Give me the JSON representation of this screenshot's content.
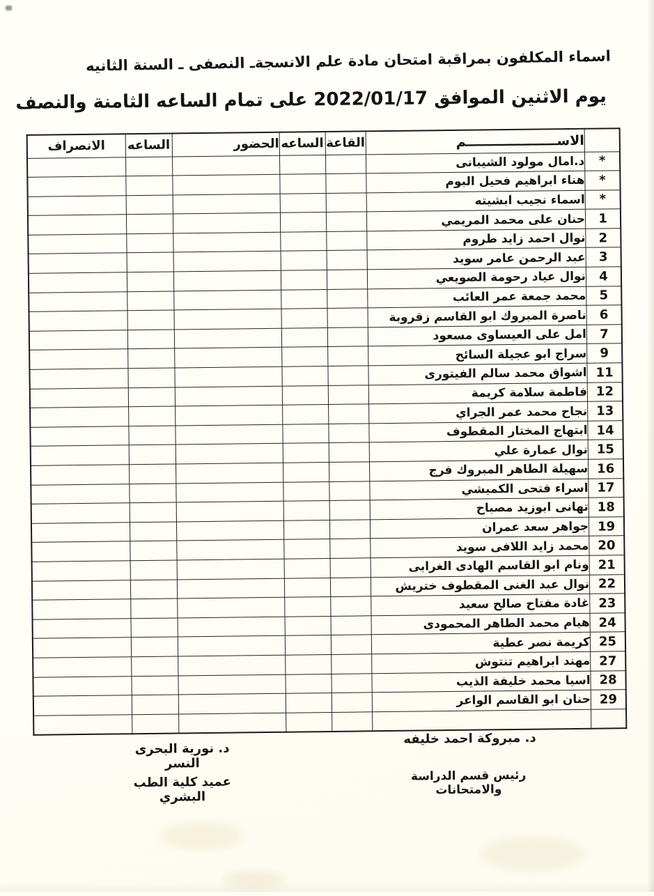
{
  "page": {
    "title_line1": "اسماء المكلفون بمراقبة امتحان مادة علم الانسجةـ النصفى  ـ السنة الثانيه",
    "title_line2": "يوم الاثنين الموافق 2022/01/17 على تمام الساعه الثامنة والنصف"
  },
  "table": {
    "headers": {
      "number": "",
      "name": "الاســــــــــــــــــــم",
      "hall": "القاعة",
      "time_in": "الساعه",
      "attendance": "الحضور",
      "time_out": "الساعه",
      "departure": "الانصراف"
    },
    "rows": [
      {
        "no": "*",
        "name": "د.امال مولود الشيبانى"
      },
      {
        "no": "*",
        "name": "هناء ابراهيم فحيل البوم"
      },
      {
        "no": "*",
        "name": "اسماء نجيب ابشيته"
      },
      {
        "no": "1",
        "name": "حنان على محمد المريمي"
      },
      {
        "no": "2",
        "name": "نوال احمد زايد طروم"
      },
      {
        "no": "3",
        "name": "عبد الرحمن عامر سويد"
      },
      {
        "no": "4",
        "name": "نوال عياد رحومة الصويعي"
      },
      {
        "no": "5",
        "name": "محمد جمعة عمر العائب"
      },
      {
        "no": "6",
        "name": "ناصرة المبروك ابو القاسم زقروبة"
      },
      {
        "no": "7",
        "name": "امل على العيساوى مسعود"
      },
      {
        "no": "9",
        "name": "سراج ابو عجيلة السائح"
      },
      {
        "no": "11",
        "name": "اشواق محمد سالم الفيتورى"
      },
      {
        "no": "12",
        "name": "فاطمة سلامة كريمة"
      },
      {
        "no": "13",
        "name": "نجاح محمد عمر الجراي"
      },
      {
        "no": "14",
        "name": "ابتهاج المختار المقطوف"
      },
      {
        "no": "15",
        "name": "نوال عمارة علي"
      },
      {
        "no": "16",
        "name": "سهيلة الطاهر المبروك فرج"
      },
      {
        "no": "17",
        "name": "اسراء فتحى الكميشي"
      },
      {
        "no": "18",
        "name": "تهانى ابوزيد مصباح"
      },
      {
        "no": "19",
        "name": "جواهر سعد عمران"
      },
      {
        "no": "20",
        "name": "محمد زايد اللافى سويد"
      },
      {
        "no": "21",
        "name": "ونام ابو القاسم الهادى الغرابى"
      },
      {
        "no": "22",
        "name": "نوال عبد الغنى المقطوف ختريش"
      },
      {
        "no": "23",
        "name": "غادة مفتاح صالح سعيد"
      },
      {
        "no": "24",
        "name": "هيام محمد الطاهر المحمودى"
      },
      {
        "no": "25",
        "name": "كريمة نصر عطية"
      },
      {
        "no": "27",
        "name": "مهند ابراهيم تنتوش"
      },
      {
        "no": "28",
        "name": "اسيا محمد خليفة الذيب"
      },
      {
        "no": "29",
        "name": "حنان ابو القاسم الواعر"
      },
      {
        "no": "",
        "name": ""
      }
    ]
  },
  "signatures": {
    "right_name": "د. مبروكة احمد خليفه",
    "right_title": "رئيس قسم الدراسة والامتحانات",
    "left_name": "د. نورية البحرى النسر",
    "left_title": "عميد كلية الطب البشري"
  }
}
